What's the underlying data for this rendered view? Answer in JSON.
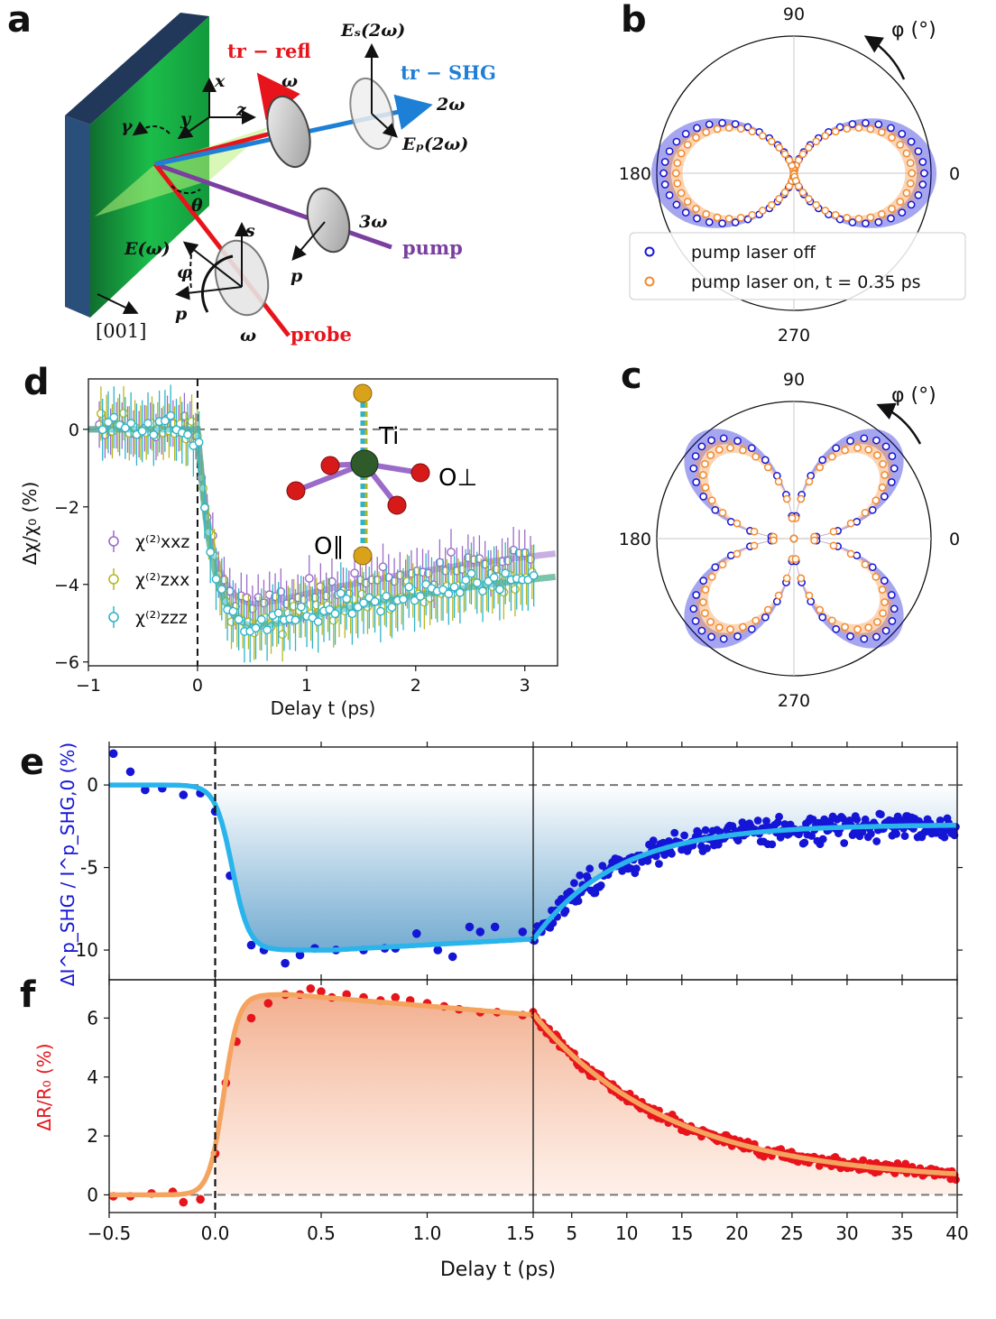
{
  "panels": {
    "a": "a",
    "b": "b",
    "c": "c",
    "d": "d",
    "e": "e",
    "f": "f"
  },
  "schematic": {
    "beam_tr_refl": "tr − refl",
    "beam_tr_shg": "tr − SHG",
    "beam_pump": "pump",
    "beam_probe": "probe",
    "omega": "ω",
    "two_omega": "2ω",
    "three_omega": "3ω",
    "es_2w": "Eₛ(2ω)",
    "ep_2w": "Eₚ(2ω)",
    "e_w": "E(ω)",
    "ax_x": "x",
    "ax_y": "y",
    "ax_z": "z",
    "gamma": "γ",
    "theta": "θ",
    "phi": "φ",
    "s": "s",
    "p": "p",
    "crystal_dir": "[001]",
    "colors": {
      "refl": "#e8141c",
      "shg": "#1e7fd6",
      "pump": "#7b3fa0",
      "probe": "#e8141c",
      "crystal": "#1bbd4a"
    }
  },
  "polar_b": {
    "angle_labels": {
      "a0": "0",
      "a90": "90",
      "a180": "180",
      "a270": "270"
    },
    "phi_label": "φ (°)",
    "legend": [
      "pump laser off",
      "pump laser on, t = 0.35 ps"
    ],
    "colors": {
      "off": "#1515d6",
      "on": "#f28a2e"
    },
    "pattern": "two-lobe",
    "amp_off": 0.95,
    "amp_on": 0.86
  },
  "polar_c": {
    "angle_labels": {
      "a0": "0",
      "a90": "90",
      "a180": "180",
      "a270": "270"
    },
    "phi_label": "φ (°)",
    "pattern": "four-lobe",
    "amp_off": 0.95,
    "amp_on": 0.86
  },
  "panel_d": {
    "xlabel": "Delay t (ps)",
    "ylabel": "Δχ/χ₀ (%)",
    "xticks": [
      "−1",
      "0",
      "1",
      "2",
      "3"
    ],
    "yticks": [
      "0",
      "−2",
      "−4",
      "−6"
    ],
    "xlim": [
      -1,
      3.3
    ],
    "ylim": [
      -6.1,
      1.3
    ],
    "legend": [
      "χ⁽²⁾xxz",
      "χ⁽²⁾zxx",
      "χ⁽²⁾zzz"
    ],
    "inset_labels": {
      "ti": "Ti",
      "o_perp": "O⊥",
      "o_par": "O∥"
    },
    "series": [
      {
        "name": "χ⁽²⁾xxz",
        "color": "#9b6bc9",
        "minimum": -4.6,
        "end": -3.2,
        "err": 0.6
      },
      {
        "name": "χ⁽²⁾zxx",
        "color": "#b6b820",
        "minimum": -5.1,
        "end": -3.8,
        "err": 0.7
      },
      {
        "name": "χ⁽²⁾zzz",
        "color": "#2eb4c9",
        "minimum": -5.2,
        "end": -3.8,
        "err": 0.8
      }
    ]
  },
  "chart_data": [
    {
      "type": "scatter",
      "panel": "e",
      "ylabel": "ΔI^p_SHG / I^p_SHG,0 (%)",
      "color": "#1515d6",
      "fit_color": "#29b4ec",
      "ylim": [
        -11.8,
        2.3
      ],
      "yticks": [
        "0",
        "-5",
        "-10"
      ],
      "left_x_range": [
        -0.5,
        1.5
      ],
      "right_x_range": [
        1.5,
        40
      ],
      "points_left": [
        [
          -0.48,
          1.9
        ],
        [
          -0.4,
          0.8
        ],
        [
          -0.33,
          -0.3
        ],
        [
          -0.25,
          -0.2
        ],
        [
          -0.15,
          -0.6
        ],
        [
          -0.07,
          -0.5
        ],
        [
          0.0,
          -1.6
        ],
        [
          0.07,
          -5.5
        ],
        [
          0.17,
          -9.7
        ],
        [
          0.23,
          -10.0
        ],
        [
          0.33,
          -10.8
        ],
        [
          0.4,
          -10.3
        ],
        [
          0.47,
          -9.9
        ],
        [
          0.57,
          -10.0
        ],
        [
          0.7,
          -10.0
        ],
        [
          0.8,
          -9.9
        ],
        [
          0.85,
          -9.9
        ],
        [
          0.95,
          -9.0
        ],
        [
          1.05,
          -10.0
        ],
        [
          1.12,
          -10.4
        ],
        [
          1.2,
          -8.6
        ],
        [
          1.25,
          -8.9
        ],
        [
          1.32,
          -8.6
        ],
        [
          1.45,
          -8.9
        ]
      ],
      "right_curve": {
        "start": -9.4,
        "end": -2.4,
        "tau_ps": 7.5,
        "scatter": 0.55,
        "n_points": 300
      }
    },
    {
      "type": "scatter",
      "panel": "f",
      "xlabel": "Delay t (ps)",
      "ylabel": "ΔR/R₀ (%)",
      "color": "#e8141c",
      "fit_color": "#f5a460",
      "ylim": [
        -0.6,
        7.3
      ],
      "yticks": [
        "0",
        "2",
        "4",
        "6"
      ],
      "left_x_range": [
        -0.5,
        1.5
      ],
      "right_x_range": [
        1.5,
        40
      ],
      "xticks_left": [
        "−0.5",
        "0.0",
        "0.5",
        "1.0",
        "1.5"
      ],
      "xticks_right": [
        "5",
        "10",
        "15",
        "20",
        "25",
        "30",
        "35",
        "40"
      ],
      "points_left": [
        [
          -0.48,
          -0.05
        ],
        [
          -0.4,
          -0.05
        ],
        [
          -0.3,
          0.05
        ],
        [
          -0.2,
          0.1
        ],
        [
          -0.15,
          -0.25
        ],
        [
          -0.07,
          -0.15
        ],
        [
          0.0,
          1.4
        ],
        [
          0.05,
          3.8
        ],
        [
          0.1,
          5.2
        ],
        [
          0.17,
          6.0
        ],
        [
          0.25,
          6.5
        ],
        [
          0.33,
          6.8
        ],
        [
          0.4,
          6.8
        ],
        [
          0.45,
          7.0
        ],
        [
          0.5,
          6.9
        ],
        [
          0.55,
          6.7
        ],
        [
          0.62,
          6.8
        ],
        [
          0.7,
          6.7
        ],
        [
          0.78,
          6.6
        ],
        [
          0.85,
          6.7
        ],
        [
          0.92,
          6.6
        ],
        [
          1.0,
          6.5
        ],
        [
          1.08,
          6.4
        ],
        [
          1.15,
          6.3
        ],
        [
          1.25,
          6.2
        ],
        [
          1.33,
          6.2
        ],
        [
          1.45,
          6.1
        ]
      ],
      "right_curve": {
        "start": 6.15,
        "end": 0.45,
        "tau_ps": 12.5,
        "scatter": 0.12,
        "n_points": 320
      }
    }
  ]
}
